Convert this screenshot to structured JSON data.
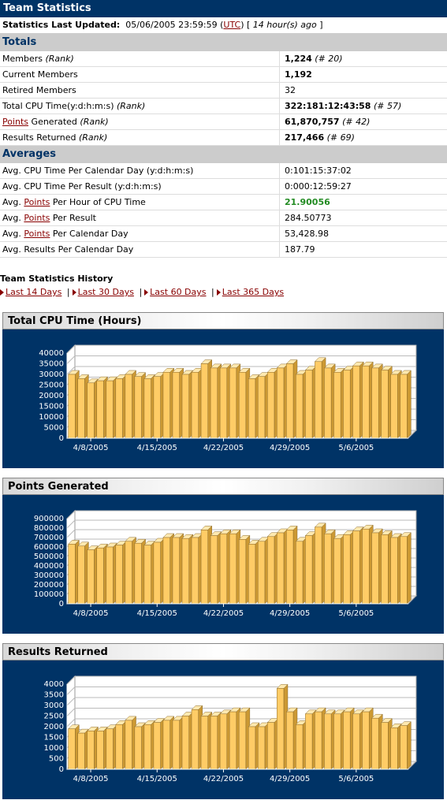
{
  "header": {
    "title": "Team Statistics"
  },
  "updated": {
    "label": "Statistics Last Updated:",
    "datetime": "05/06/2005 23:59:59",
    "tz_open": "(",
    "tz": "UTC",
    "tz_close": ")",
    "ago_open": "[ ",
    "ago": "14 hour(s) ago",
    "ago_close": " ]"
  },
  "totals": {
    "heading": "Totals",
    "rows": [
      {
        "label": "Members",
        "rank_label": "(Rank)",
        "value": "1,224",
        "rank": "(# 20)"
      },
      {
        "label": "Current Members",
        "value": "1,192"
      },
      {
        "label": "Retired Members",
        "value": "32"
      },
      {
        "label": "Total CPU Time(y:d:h:m:s)",
        "rank_label": "(Rank)",
        "value": "322:181:12:43:58",
        "rank": "(# 57)"
      },
      {
        "link": "Points",
        "label": " Generated",
        "rank_label": "(Rank)",
        "value": "61,870,757",
        "rank": "(# 42)"
      },
      {
        "label": "Results Returned",
        "rank_label": "(Rank)",
        "value": "217,466",
        "rank": "(# 69)"
      }
    ]
  },
  "averages": {
    "heading": "Averages",
    "rows": [
      {
        "label": "Avg. CPU Time Per Calendar Day (y:d:h:m:s)",
        "value": "0:101:15:37:02"
      },
      {
        "label": "Avg. CPU Time Per Result (y:d:h:m:s)",
        "value": "0:000:12:59:27"
      },
      {
        "pre": "Avg. ",
        "link": "Points",
        "post": " Per Hour of CPU Time",
        "value": "21.90056"
      },
      {
        "pre": "Avg. ",
        "link": "Points",
        "post": " Per Result",
        "value": "284.50773"
      },
      {
        "pre": "Avg. ",
        "link": "Points",
        "post": " Per Calendar Day",
        "value": "53,428.98"
      },
      {
        "label": "Avg. Results Per Calendar Day",
        "value": "187.79"
      }
    ]
  },
  "history": {
    "title": "Team Statistics History",
    "links": [
      "Last 14 Days",
      "Last 30 Days",
      "Last 60 Days",
      "Last 365 Days"
    ]
  },
  "colors": {
    "navy": "#003366",
    "bar_face": "#ffcc66",
    "bar_side": "#cc9933",
    "bar_top": "#ffe9b0"
  },
  "chart_data": [
    {
      "type": "bar",
      "title": "Total CPU Time (Hours)",
      "ylim": [
        0,
        40000
      ],
      "yticks": [
        "0",
        "5000",
        "10000",
        "15000",
        "20000",
        "25000",
        "30000",
        "35000",
        "40000"
      ],
      "xticks": [
        "4/8/2005",
        "4/15/2005",
        "4/22/2005",
        "4/29/2005",
        "5/6/2005"
      ],
      "values": [
        30000,
        28000,
        26000,
        27000,
        27000,
        28000,
        30000,
        29000,
        28000,
        29000,
        31000,
        31000,
        30000,
        31000,
        35000,
        33000,
        33000,
        33000,
        31000,
        28000,
        29000,
        31000,
        33000,
        35000,
        30000,
        32000,
        36000,
        33000,
        31000,
        32000,
        34000,
        34000,
        33000,
        32000,
        30000,
        30000
      ]
    },
    {
      "type": "bar",
      "title": "Points Generated",
      "ylim": [
        0,
        900000
      ],
      "yticks": [
        "0",
        "100000",
        "200000",
        "300000",
        "400000",
        "500000",
        "600000",
        "700000",
        "800000",
        "900000"
      ],
      "xticks": [
        "4/8/2005",
        "4/15/2005",
        "4/22/2005",
        "4/29/2005",
        "5/6/2005"
      ],
      "values": [
        630000,
        610000,
        570000,
        590000,
        600000,
        620000,
        660000,
        640000,
        620000,
        650000,
        700000,
        700000,
        690000,
        700000,
        780000,
        720000,
        740000,
        740000,
        680000,
        630000,
        660000,
        710000,
        750000,
        780000,
        660000,
        720000,
        810000,
        740000,
        690000,
        730000,
        770000,
        790000,
        750000,
        730000,
        700000,
        710000
      ]
    },
    {
      "type": "bar",
      "title": "Results Returned",
      "ylim": [
        0,
        4000
      ],
      "yticks": [
        "0",
        "500",
        "1000",
        "1500",
        "2000",
        "2500",
        "3000",
        "3500",
        "4000"
      ],
      "xticks": [
        "4/8/2005",
        "4/15/2005",
        "4/22/2005",
        "4/29/2005",
        "5/6/2005"
      ],
      "values": [
        1900,
        1700,
        1800,
        1800,
        1900,
        2100,
        2300,
        2000,
        2100,
        2200,
        2300,
        2300,
        2500,
        2800,
        2500,
        2500,
        2600,
        2700,
        2700,
        2000,
        2000,
        2200,
        3800,
        2700,
        2100,
        2600,
        2700,
        2600,
        2600,
        2700,
        2600,
        2700,
        2400,
        2200,
        1950,
        2050
      ]
    }
  ]
}
